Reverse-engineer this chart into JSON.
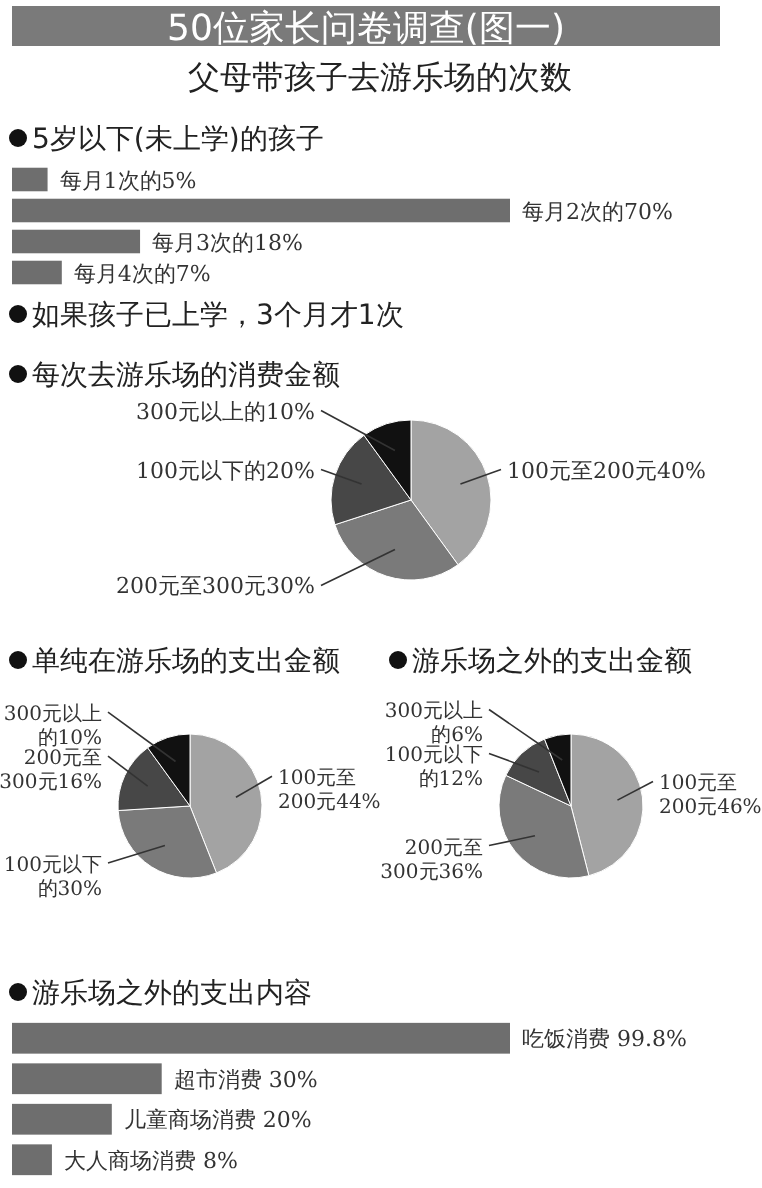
{
  "chart_data": [
    {
      "type": "other",
      "title": "50位家长问卷调查(图一)",
      "subtitle": "父母带孩子去游乐场的次数"
    },
    {
      "type": "bar",
      "orientation": "horizontal",
      "title": "5岁以下(未上学)的孩子",
      "categories": [
        null,
        null,
        null,
        null
      ],
      "values": [
        5,
        70,
        18,
        7
      ],
      "value_labels": [
        "每月1次的5%",
        "每月2次的70%",
        "每月3次的18%",
        "每月4次的7%"
      ],
      "color": "#6e6e6e",
      "annotations": [
        "如果孩子已上学，3个月才1次"
      ]
    },
    {
      "type": "pie",
      "title": "每次去游乐场的消费金额",
      "categories": [
        "100元至200元",
        "200元至300元",
        "100元以下的",
        "300元以上的"
      ],
      "values": [
        40,
        30,
        20,
        10
      ],
      "value_labels": [
        "40%",
        "30%",
        "20%",
        "10%"
      ],
      "colors": [
        "#a3a3a3",
        "#7a7a7a",
        "#474747",
        "#111111"
      ]
    },
    {
      "type": "pie",
      "title": "单纯在游乐场的支出金额",
      "categories": [
        "100元至200元",
        "100元以下的",
        "200元至300元",
        "300元以上的"
      ],
      "values": [
        44,
        30,
        16,
        10
      ],
      "value_labels": [
        "44%",
        "30%",
        "16%",
        "10%"
      ],
      "colors": [
        "#a3a3a3",
        "#7a7a7a",
        "#474747",
        "#111111"
      ]
    },
    {
      "type": "pie",
      "title": "游乐场之外的支出金额",
      "categories": [
        "100元至200元",
        "200元至300元",
        "100元以下的",
        "300元以上的"
      ],
      "values": [
        46,
        36,
        12,
        6
      ],
      "value_labels": [
        "46%",
        "36%",
        "12%",
        "6%"
      ],
      "colors": [
        "#a3a3a3",
        "#7a7a7a",
        "#474747",
        "#111111"
      ]
    },
    {
      "type": "bar",
      "orientation": "horizontal",
      "title": "游乐场之外的支出内容",
      "categories": [
        null,
        null,
        null,
        null
      ],
      "values": [
        99.8,
        30,
        20,
        8
      ],
      "value_labels": [
        "吃饭消费 99.8%",
        "超市消费 30%",
        "儿童商场消费 20%",
        "大人商场消费 8%"
      ],
      "color": "#6e6e6e"
    }
  ]
}
